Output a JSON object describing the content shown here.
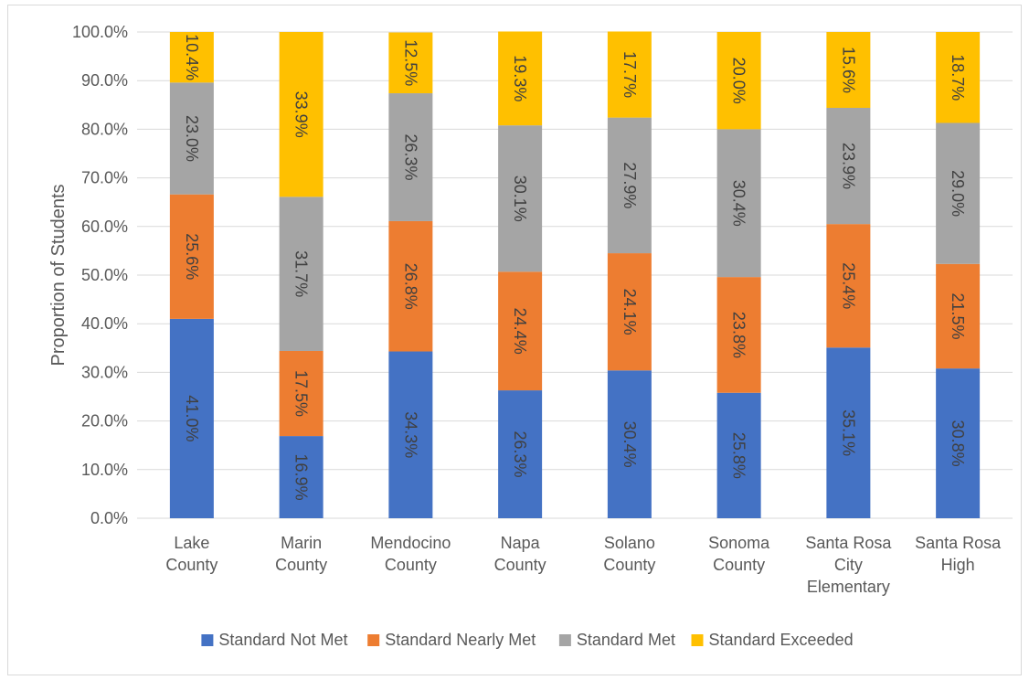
{
  "chart_data": {
    "type": "bar",
    "stacked": true,
    "orientation": "vertical",
    "title": "",
    "xlabel": "",
    "ylabel": "Proportion of Students",
    "ylim": [
      0,
      100
    ],
    "yticks": [
      "0.0%",
      "10.0%",
      "20.0%",
      "30.0%",
      "40.0%",
      "50.0%",
      "60.0%",
      "70.0%",
      "80.0%",
      "90.0%",
      "100.0%"
    ],
    "grid": true,
    "legend_position": "bottom",
    "categories": [
      [
        "Lake",
        "County"
      ],
      [
        "Marin",
        "County"
      ],
      [
        "Mendocino",
        "County"
      ],
      [
        "Napa",
        "County"
      ],
      [
        "Solano",
        "County"
      ],
      [
        "Sonoma",
        "County"
      ],
      [
        "Santa Rosa",
        "City",
        "Elementary"
      ],
      [
        "Santa Rosa",
        "High"
      ]
    ],
    "series": [
      {
        "name": "Standard Not Met",
        "color": "#4472C4",
        "values": [
          41.0,
          16.9,
          34.3,
          26.3,
          30.4,
          25.8,
          35.1,
          30.8
        ],
        "labels": [
          "41.0%",
          "16.9%",
          "34.3%",
          "26.3%",
          "30.4%",
          "25.8%",
          "35.1%",
          "30.8%"
        ]
      },
      {
        "name": "Standard Nearly Met",
        "color": "#ED7D31",
        "values": [
          25.6,
          17.5,
          26.8,
          24.4,
          24.1,
          23.8,
          25.4,
          21.5
        ],
        "labels": [
          "25.6%",
          "17.5%",
          "26.8%",
          "24.4%",
          "24.1%",
          "23.8%",
          "25.4%",
          "21.5%"
        ]
      },
      {
        "name": "Standard Met",
        "color": "#A5A5A5",
        "values": [
          23.0,
          31.7,
          26.3,
          30.1,
          27.9,
          30.4,
          23.9,
          29.0
        ],
        "labels": [
          "23.0%",
          "31.7%",
          "26.3%",
          "30.1%",
          "27.9%",
          "30.4%",
          "23.9%",
          "29.0%"
        ]
      },
      {
        "name": "Standard Exceeded",
        "color": "#FFC000",
        "values": [
          10.4,
          33.9,
          12.5,
          19.3,
          17.7,
          20.0,
          15.6,
          18.7
        ],
        "labels": [
          "10.4%",
          "33.9%",
          "12.5%",
          "19.3%",
          "17.7%",
          "20.0%",
          "15.6%",
          "18.7%"
        ]
      }
    ]
  }
}
